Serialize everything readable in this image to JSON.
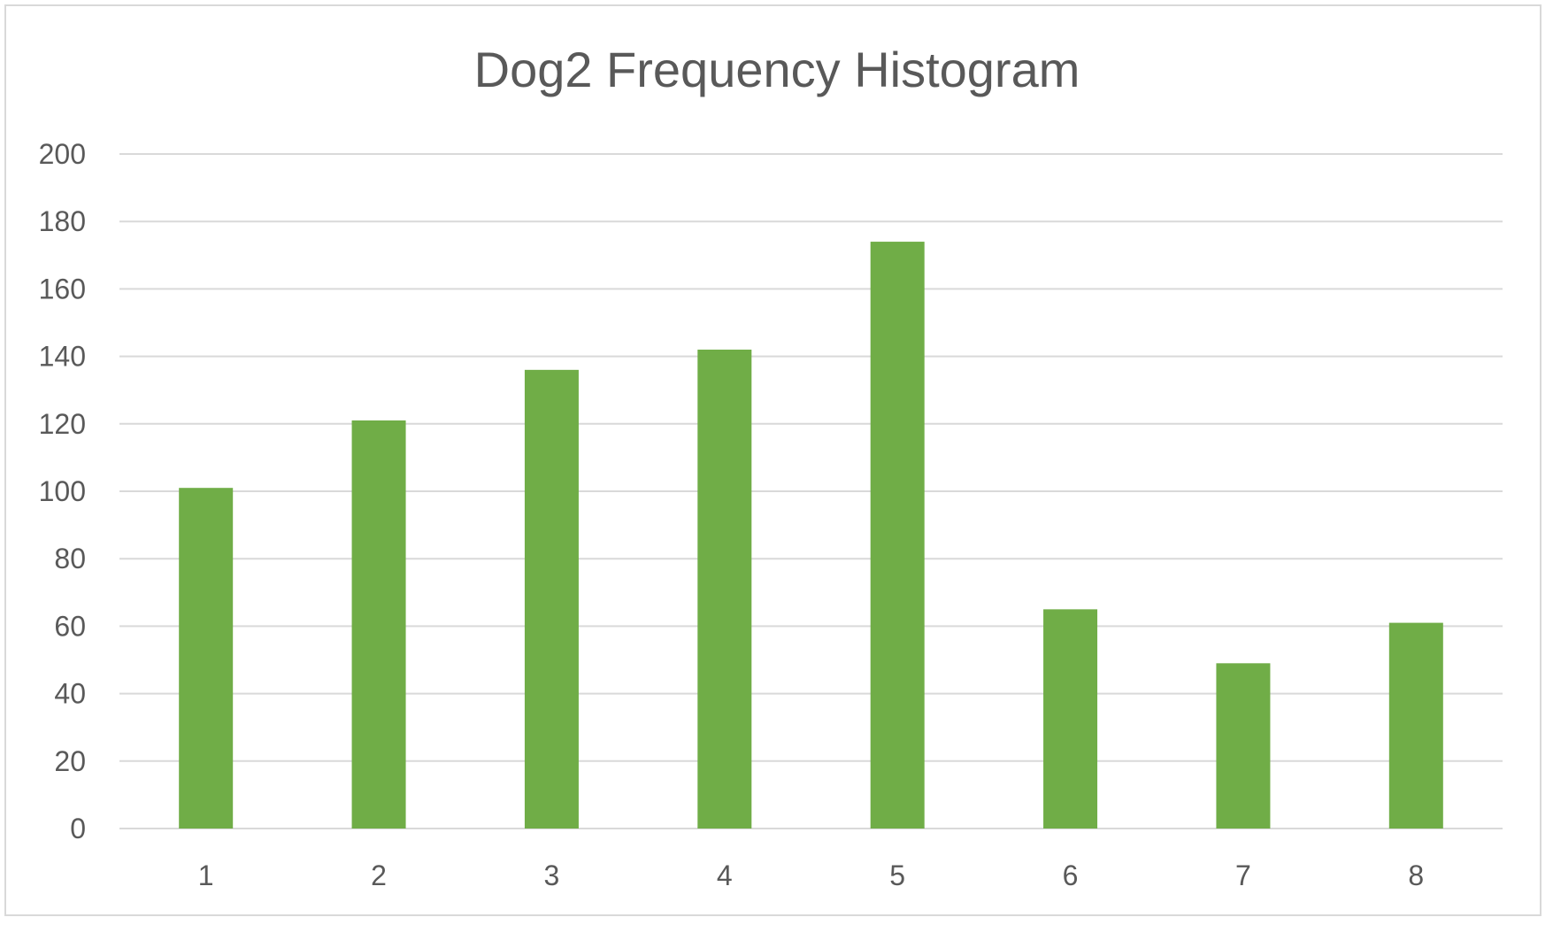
{
  "chart_data": {
    "type": "bar",
    "title": "Dog2 Frequency Histogram",
    "xlabel": "",
    "ylabel": "",
    "categories": [
      "1",
      "2",
      "3",
      "4",
      "5",
      "6",
      "7",
      "8"
    ],
    "values": [
      101,
      121,
      136,
      142,
      174,
      65,
      49,
      61
    ],
    "ylim": [
      0,
      200
    ],
    "yticks": [
      "0",
      "20",
      "40",
      "60",
      "80",
      "100",
      "120",
      "140",
      "160",
      "180",
      "200"
    ],
    "grid": true,
    "legend": "none",
    "bar_color": "#70ad47"
  }
}
